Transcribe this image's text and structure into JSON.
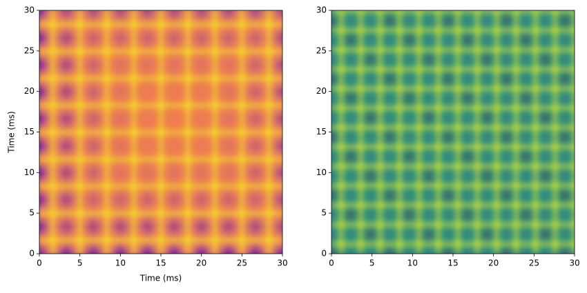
{
  "chart_data": [
    {
      "type": "heatmap",
      "xlabel": "Time (ms)",
      "ylabel": "Time (ms)",
      "colormap": "plasma",
      "xlim": [
        0,
        30
      ],
      "ylim": [
        0,
        30
      ],
      "xticks": [
        0,
        5,
        10,
        15,
        20,
        25,
        30
      ],
      "yticks": [
        0,
        5,
        10,
        15,
        20,
        25,
        30
      ]
    },
    {
      "type": "heatmap",
      "colormap": "viridis",
      "xlim": [
        0,
        30
      ],
      "ylim": [
        0,
        30
      ],
      "xticks": [
        0,
        5,
        10,
        15,
        20,
        25,
        30
      ],
      "yticks": [
        0,
        5,
        10,
        15,
        20,
        25,
        30
      ]
    }
  ]
}
